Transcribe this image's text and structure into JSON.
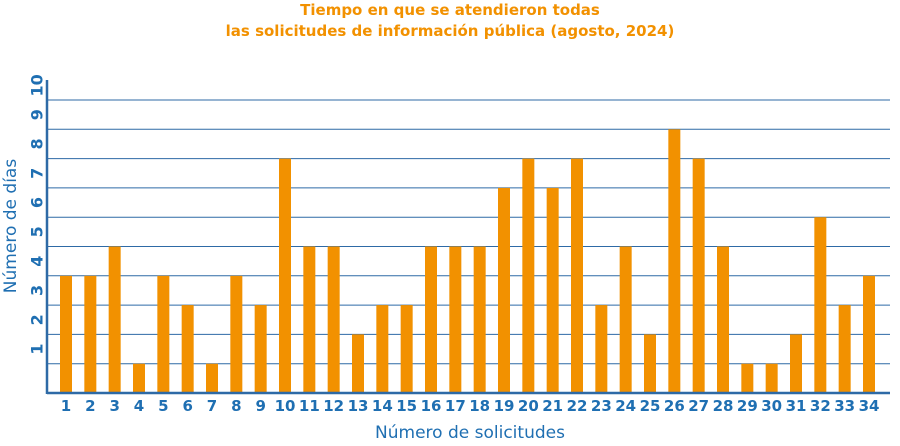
{
  "chart_data": {
    "type": "bar",
    "title_line1": "Tiempo en que se atendieron todas",
    "title_line2": "las solicitudes de información pública (agosto, 2024)",
    "xlabel": "Número de solicitudes",
    "ylabel": "Número de días",
    "ylim": [
      0,
      10
    ],
    "yticks": [
      1,
      2,
      3,
      4,
      5,
      6,
      7,
      8,
      9,
      10
    ],
    "grid": true,
    "categories": [
      "1",
      "2",
      "3",
      "4",
      "5",
      "6",
      "7",
      "8",
      "9",
      "10",
      "11",
      "12",
      "13",
      "14",
      "15",
      "16",
      "17",
      "18",
      "19",
      "20",
      "21",
      "22",
      "23",
      "24",
      "25",
      "26",
      "27",
      "28",
      "29",
      "30",
      "31",
      "32",
      "33",
      "34"
    ],
    "values": [
      4,
      4,
      5,
      1,
      4,
      3,
      1,
      4,
      3,
      8,
      5,
      5,
      2,
      3,
      3,
      5,
      5,
      5,
      7,
      8,
      7,
      8,
      3,
      5,
      2,
      9,
      8,
      5,
      1,
      1,
      2,
      6,
      3,
      4
    ],
    "colors": {
      "bar": "#f29100",
      "grid": "#2e6aa6",
      "text": "#1f6fb2",
      "title": "#f29100"
    }
  }
}
